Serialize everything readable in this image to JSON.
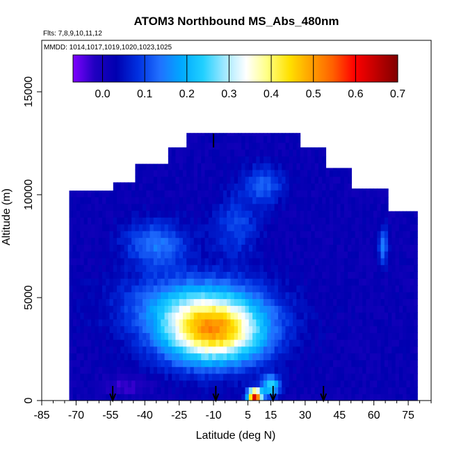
{
  "chart_data": {
    "type": "heatmap",
    "title": "ATOM3 Northbound MS_Abs_480nm",
    "flights_label": "Flts: 7,8,9,10,11,12",
    "dates_label": "MMDD: 1014,1017,1019,1020,1023,1025",
    "xlabel": "Latitude (deg N)",
    "ylabel": "Altitude (m)",
    "xlim": [
      -85,
      85
    ],
    "ylim": [
      0,
      17500
    ],
    "x_ticks": [
      -85,
      -70,
      -55,
      -40,
      -25,
      -10,
      5,
      15,
      30,
      45,
      60,
      75
    ],
    "y_ticks": [
      0,
      5000,
      10000,
      15000
    ],
    "colorbar": {
      "min": -0.07,
      "max": 0.7,
      "ticks": [
        0.0,
        0.1,
        0.2,
        0.3,
        0.4,
        0.5,
        0.6,
        0.7
      ],
      "tick_labels": [
        "0.0",
        "0.1",
        "0.2",
        "0.3",
        "0.4",
        "0.5",
        "0.6",
        "0.7"
      ],
      "colors": [
        "#7f00ff",
        "#2000c0",
        "#0000b0",
        "#0030e0",
        "#2070ff",
        "#00a8ff",
        "#20d0ff",
        "#a0e8ff",
        "#ffffff",
        "#ffff80",
        "#ffe000",
        "#ffa000",
        "#ff6000",
        "#ff0000",
        "#c00000",
        "#800000"
      ]
    },
    "profile_markers_lat": [
      -54,
      -9,
      16,
      38
    ],
    "top_marker_lat": -10,
    "background_value": 0.02,
    "features": [
      {
        "name": "mid-tropical plume",
        "lat": -10,
        "alt": 3300,
        "value": 0.45,
        "lat_halfwidth": 22,
        "alt_halfwidth": 1500
      },
      {
        "name": "plume halo",
        "lat": -18,
        "alt": 4700,
        "value": 0.18,
        "lat_halfwidth": 30,
        "alt_halfwidth": 1400
      },
      {
        "name": "southern upper layer",
        "lat": -35,
        "alt": 7600,
        "value": 0.14,
        "lat_halfwidth": 14,
        "alt_halfwidth": 1100
      },
      {
        "name": "tilted column",
        "lat": 0,
        "alt": 8500,
        "value": 0.1,
        "lat_halfwidth": 10,
        "alt_halfwidth": 1500
      },
      {
        "name": "upper tropical layer",
        "lat": 12,
        "alt": 10500,
        "value": 0.12,
        "lat_halfwidth": 9,
        "alt_halfwidth": 900
      },
      {
        "name": "surface hotspot",
        "lat": 8,
        "alt": 250,
        "value": 0.68,
        "lat_halfwidth": 3,
        "alt_halfwidth": 300
      },
      {
        "name": "surface outflow",
        "lat": 15,
        "alt": 700,
        "value": 0.25,
        "lat_halfwidth": 4,
        "alt_halfwidth": 500
      },
      {
        "name": "southern boundary layer",
        "lat": -48,
        "alt": 700,
        "value": -0.04,
        "lat_halfwidth": 10,
        "alt_halfwidth": 400
      },
      {
        "name": "northern column",
        "lat": 64,
        "alt": 7500,
        "value": 0.15,
        "lat_halfwidth": 2,
        "alt_halfwidth": 900
      }
    ],
    "grid": false,
    "legend": "colorbar inside plot at top"
  }
}
